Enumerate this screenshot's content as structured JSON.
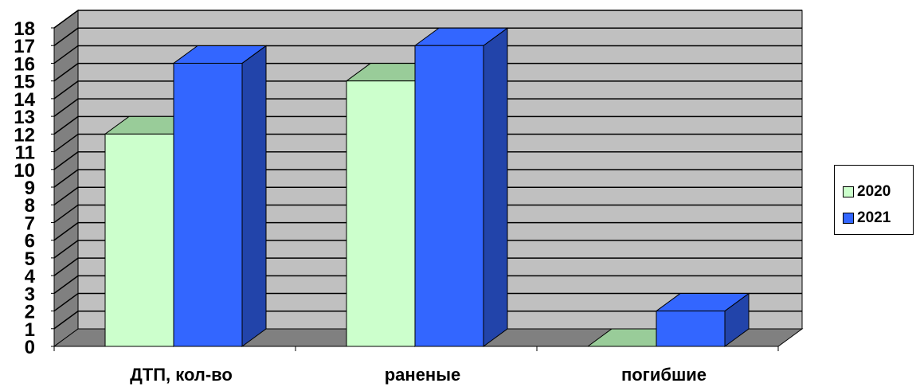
{
  "chart_data": {
    "type": "bar",
    "title": "",
    "xlabel": "",
    "ylabel": "",
    "categories": [
      "ДТП, кол-во",
      "раненые",
      "погибшие"
    ],
    "series": [
      {
        "name": "2020",
        "values": [
          12,
          15,
          0
        ]
      },
      {
        "name": "2021",
        "values": [
          16,
          17,
          2
        ]
      }
    ],
    "ylim": [
      0,
      18
    ],
    "yticks": [
      "0",
      "1",
      "2",
      "3",
      "4",
      "5",
      "6",
      "7",
      "8",
      "9",
      "10",
      "11",
      "12",
      "13",
      "14",
      "15",
      "16",
      "17",
      "18"
    ],
    "grid": true,
    "legend": "right",
    "three_d": true
  },
  "colors": {
    "series_2020": "#ccffcc",
    "series_2020_top": "#99cc99",
    "series_2021": "#3366ff",
    "series_2021_side": "#2244aa",
    "wall": "#c0c0c0",
    "floor": "#808080",
    "left_wall": "#808080"
  }
}
